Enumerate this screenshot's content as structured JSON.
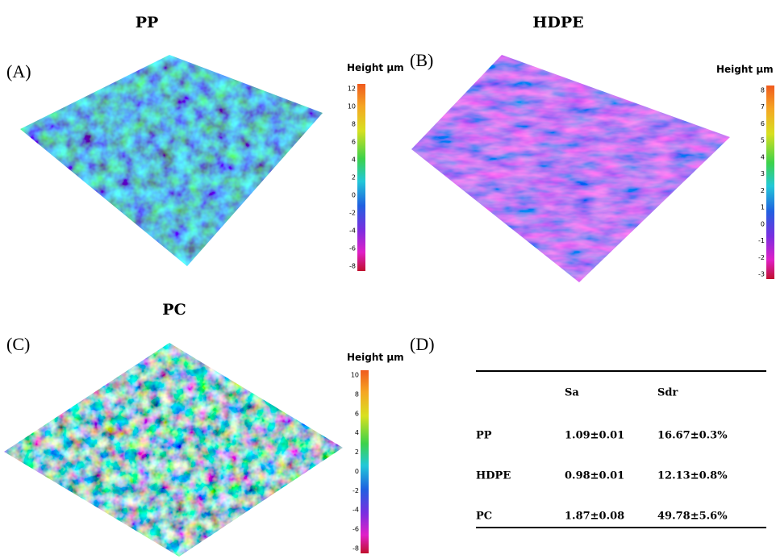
{
  "panels": [
    {
      "title": "PP",
      "label": "(A)",
      "colorbar": {
        "label": "Height μm",
        "ticks": [
          12,
          10,
          8,
          6,
          4,
          2,
          0,
          -2,
          -4,
          -6,
          -8
        ]
      }
    },
    {
      "title": "HDPE",
      "label": "(B)",
      "colorbar": {
        "label": "Height μm",
        "ticks": [
          8,
          7,
          6,
          5,
          4,
          3,
          2,
          1,
          0,
          -1,
          -2,
          -3
        ]
      }
    },
    {
      "title": "PC",
      "label": "(C)",
      "colorbar": {
        "label": "Height μm",
        "ticks": [
          10,
          8,
          6,
          4,
          2,
          0,
          -2,
          -4,
          -6,
          -8
        ]
      }
    }
  ],
  "table": {
    "label": "(D)",
    "header": [
      "Sa",
      "Sdr"
    ],
    "rows": [
      [
        "PP",
        "1.09±0.01",
        "16.67±0.3%"
      ],
      [
        "HDPE",
        "0.98±0.01",
        "12.13±0.8%"
      ],
      [
        "PC",
        "1.87±0.08",
        "49.78±5.6%"
      ]
    ]
  }
}
